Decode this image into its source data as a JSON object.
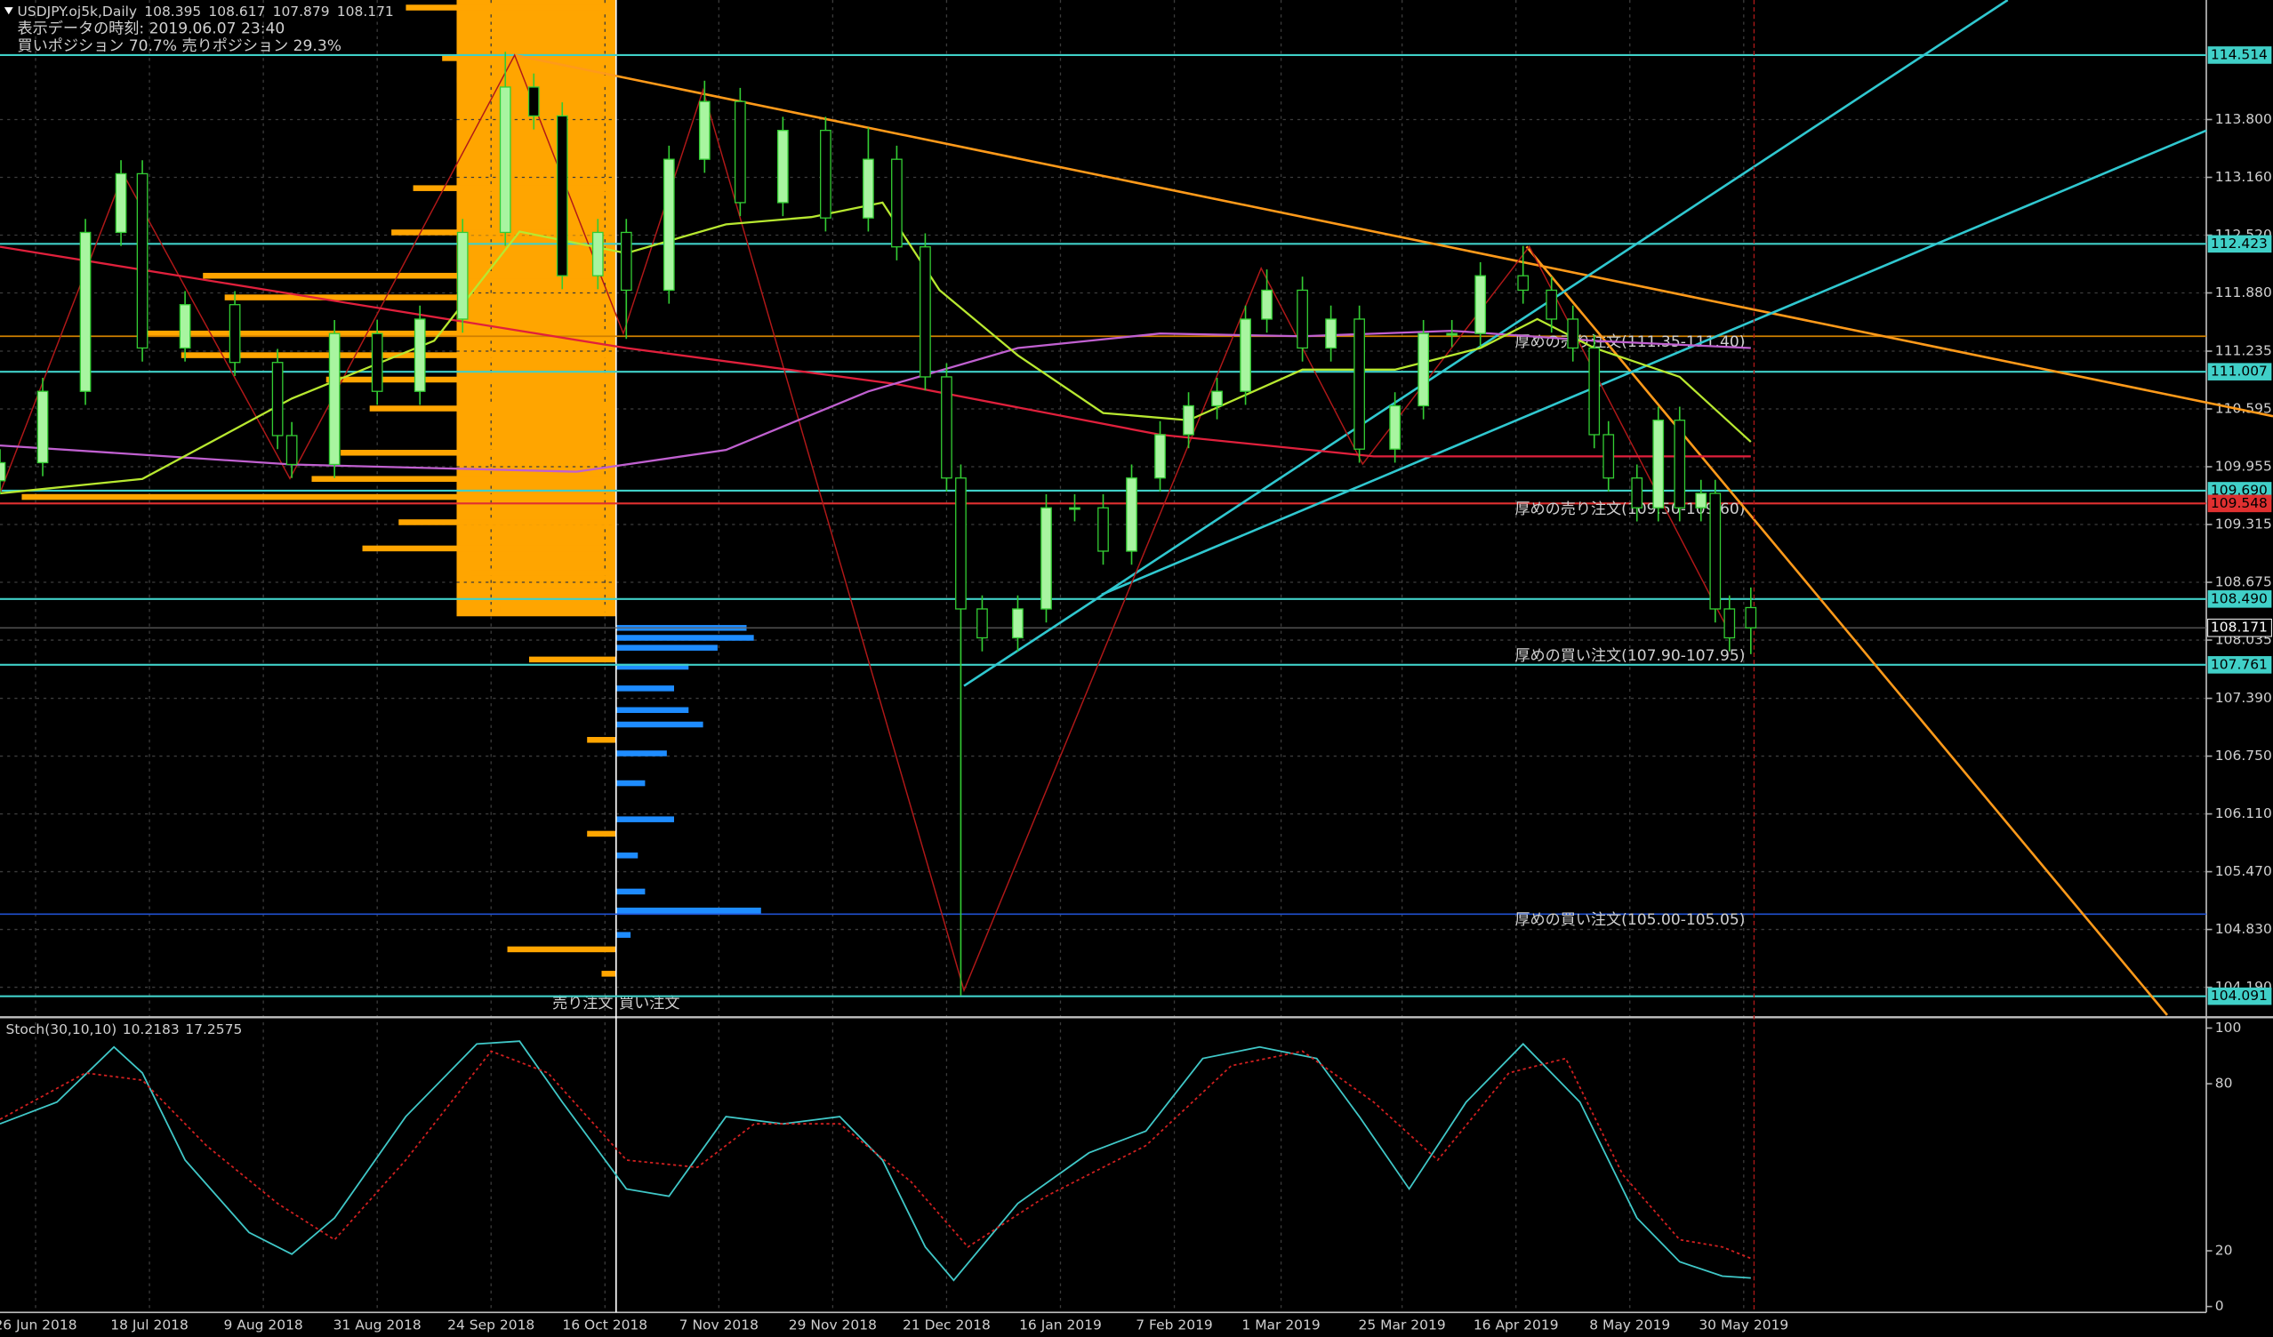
{
  "chart_data": [
    {
      "type": "candlestick",
      "title": "USDJPY.oj5k,Daily",
      "subtitle": "表示データの時刻: 2019.06.07 23:40",
      "position_ratio": "買いポジション 70.7% 売りポジション 29.3%",
      "up_color": "#a8f5a0",
      "down_color": "#000000",
      "wick_color": "#33cc33",
      "grid": true,
      "xlim": [
        0,
        310
      ],
      "ylim": [
        103.882,
        115.124
      ],
      "xticks": [
        {
          "value": 5,
          "label": "26 Jun 2018"
        },
        {
          "value": 21,
          "label": "18 Jul 2018"
        },
        {
          "value": 37,
          "label": "9 Aug 2018"
        },
        {
          "value": 53,
          "label": "31 Aug 2018"
        },
        {
          "value": 69,
          "label": "24 Sep 2018"
        },
        {
          "value": 85,
          "label": "16 Oct 2018"
        },
        {
          "value": 101,
          "label": "7 Nov 2018"
        },
        {
          "value": 117,
          "label": "29 Nov 2018"
        },
        {
          "value": 133,
          "label": "21 Dec 2018"
        },
        {
          "value": 149,
          "label": "16 Jan 2019"
        },
        {
          "value": 165,
          "label": "7 Feb 2019"
        },
        {
          "value": 180,
          "label": "1 Mar 2019"
        },
        {
          "value": 197,
          "label": "25 Mar 2019"
        },
        {
          "value": 213,
          "label": "16 Apr 2019"
        },
        {
          "value": 229,
          "label": "8 May 2019"
        },
        {
          "value": 245,
          "label": "30 May 2019"
        }
      ],
      "yticks": [
        {
          "value": 113.8,
          "label": "113.800"
        },
        {
          "value": 113.16,
          "label": "113.160"
        },
        {
          "value": 112.52,
          "label": "112.520"
        },
        {
          "value": 111.88,
          "label": "111.880"
        },
        111.235,
        110.595,
        109.955,
        109.315,
        108.675,
        108.035,
        {
          "value": 107.39,
          "label": "107.390"
        },
        {
          "value": 106.75,
          "label": "106.750"
        },
        {
          "value": 106.11,
          "label": "106.110"
        },
        {
          "value": 105.47,
          "label": "105.470"
        },
        {
          "value": 104.83,
          "label": "104.830"
        },
        {
          "value": 104.19,
          "label": "104.190"
        }
      ],
      "x": [
        0,
        6,
        12,
        17,
        20,
        26,
        33,
        39,
        41,
        47,
        53,
        59,
        65,
        71,
        75,
        79,
        84,
        88,
        94,
        99,
        104,
        110,
        116,
        122,
        126,
        130,
        133,
        135,
        138,
        143,
        147,
        151,
        155,
        159,
        163,
        167,
        171,
        175,
        178,
        183,
        187,
        191,
        196,
        200,
        204,
        208,
        214,
        218,
        221,
        224,
        226,
        230,
        233,
        236,
        239,
        241,
        243,
        246
      ],
      "open": [
        109.8,
        110,
        110.79,
        112.55,
        113.2,
        111.27,
        111.75,
        111.11,
        110.3,
        109.98,
        111.43,
        110.79,
        111.59,
        112.55,
        114.16,
        113.84,
        112.07,
        112.55,
        111.91,
        113.36,
        114,
        112.88,
        113.68,
        112.71,
        113.36,
        112.39,
        110.95,
        109.83,
        108.38,
        108.06,
        108.38,
        109.5,
        109.5,
        109.02,
        109.83,
        110.31,
        110.63,
        110.79,
        111.59,
        111.91,
        111.27,
        111.59,
        110.15,
        110.63,
        111.43,
        111.43,
        112.07,
        111.91,
        111.59,
        111.27,
        110.31,
        109.83,
        109.5,
        110.47,
        109.5,
        109.66,
        108.38,
        108.395
      ],
      "high": [
        110.15,
        110.94,
        112.7,
        113.35,
        113.35,
        111.9,
        111.9,
        111.26,
        110.45,
        111.58,
        111.58,
        111.74,
        112.7,
        114.55,
        114.31,
        113.99,
        112.7,
        112.7,
        113.51,
        114.23,
        114.15,
        113.83,
        113.83,
        113.71,
        113.51,
        112.54,
        111.1,
        109.98,
        108.53,
        108.53,
        109.65,
        109.65,
        109.65,
        109.98,
        110.46,
        110.78,
        110.94,
        111.74,
        112.14,
        112.06,
        111.74,
        111.74,
        110.78,
        111.58,
        111.58,
        112.22,
        112.4,
        112.06,
        111.74,
        111.42,
        110.46,
        109.98,
        110.62,
        110.62,
        109.81,
        109.81,
        108.53,
        108.617
      ],
      "low": [
        109.65,
        109.85,
        110.64,
        112.4,
        111.12,
        111.12,
        110.96,
        110.15,
        109.83,
        109.83,
        110.64,
        110.64,
        111.44,
        112.4,
        113.69,
        111.92,
        111.92,
        111.37,
        111.76,
        113.21,
        112.73,
        112.73,
        112.56,
        112.56,
        112.24,
        110.8,
        109.68,
        104.1,
        107.91,
        107.91,
        108.23,
        109.35,
        108.87,
        108.87,
        109.68,
        110.16,
        110.48,
        110.64,
        111.44,
        111.12,
        111.12,
        110,
        110,
        110.48,
        111.28,
        111.28,
        111.76,
        111.44,
        111.12,
        110.16,
        109.68,
        109.35,
        109.35,
        109.35,
        109.35,
        108.23,
        107.91,
        107.879
      ],
      "close": [
        110,
        110.79,
        112.55,
        113.2,
        111.27,
        111.75,
        111.11,
        110.3,
        109.98,
        111.43,
        110.79,
        111.59,
        112.55,
        114.16,
        113.84,
        112.07,
        112.55,
        111.91,
        113.36,
        114,
        112.88,
        113.68,
        112.71,
        113.36,
        112.39,
        110.95,
        109.83,
        108.38,
        108.06,
        108.38,
        109.5,
        109.5,
        109.02,
        109.83,
        110.31,
        110.63,
        110.79,
        111.59,
        111.91,
        111.27,
        111.59,
        110.15,
        110.63,
        111.43,
        111.43,
        112.07,
        111.91,
        111.59,
        111.27,
        110.31,
        109.83,
        109.5,
        110.47,
        109.5,
        109.66,
        108.38,
        108.06,
        108.171
      ],
      "moving_averages": [
        {
          "color": "#e0203c",
          "x": [
            0,
            88,
            126,
            163,
            193,
            246
          ],
          "values": [
            112.39,
            111.27,
            110.87,
            110.31,
            110.07,
            110.07
          ]
        },
        {
          "color": "#c060d0",
          "x": [
            0,
            41,
            81,
            102,
            122,
            143,
            163,
            183,
            204,
            224,
            246
          ],
          "values": [
            110.19,
            109.98,
            109.9,
            110.14,
            110.79,
            111.27,
            111.43,
            111.4,
            111.46,
            111.35,
            111.27
          ]
        },
        {
          "color": "#b8e830",
          "x": [
            0,
            20,
            41,
            61,
            73,
            88,
            102,
            114,
            124,
            132,
            143,
            155,
            167,
            183,
            196,
            208,
            216,
            224,
            236,
            246
          ],
          "values": [
            109.66,
            109.82,
            110.71,
            111.35,
            112.56,
            112.32,
            112.64,
            112.72,
            112.88,
            111.91,
            111.19,
            110.55,
            110.47,
            111.03,
            111.03,
            111.27,
            111.59,
            111.27,
            110.95,
            110.23
          ]
        }
      ],
      "levels": [
        {
          "value": 114.514,
          "color": "#40d0c8"
        },
        {
          "value": 112.423,
          "color": "#40d0c8"
        },
        {
          "value": 111.007,
          "color": "#40d0c8"
        },
        {
          "value": 109.69,
          "label": "109.690",
          "color": "#40d0c8"
        },
        {
          "value": 109.548,
          "color": "#e03030",
          "note": "厚めの売り注文(109.50-109.60)"
        },
        {
          "value": 108.49,
          "label": "108.490",
          "color": "#40d0c8"
        },
        {
          "value": 108.171,
          "color": "#000000"
        },
        {
          "value": 107.761,
          "color": "#40d0c8",
          "note": "厚めの買い注文(107.90-107.95)"
        },
        {
          "value": 104.091,
          "color": "#40d0c8"
        }
      ],
      "order_lines": [
        {
          "value": 111.4,
          "color": "#d08000",
          "note": "厚めの売り注文(111.35-111.40)"
        },
        {
          "value": 105.0,
          "color": "#2050d0",
          "note": "厚めの買い注文(105.00-105.05)"
        }
      ],
      "order_book": {
        "sell_label": "売り注文",
        "buy_label": "買い注文",
        "sell": {
          "color": "#ffa500",
          "prices": [
            115.04,
            114.48,
            114.24,
            113.04,
            112.55,
            112.07,
            111.83,
            111.43,
            111.19,
            110.92,
            110.6,
            110.11,
            109.82,
            109.62,
            109.34,
            109.05,
            108.78,
            108.57,
            108.38,
            107.82,
            106.93,
            105.89,
            104.61,
            104.34
          ],
          "values": [
            145,
            120,
            110,
            140,
            155,
            285,
            270,
            330,
            300,
            200,
            170,
            190,
            210,
            410,
            150,
            175,
            100,
            50,
            80,
            60,
            20,
            20,
            75,
            10
          ]
        },
        "buy": {
          "color": "#1e8cff",
          "prices": [
            108.17,
            108.06,
            107.95,
            107.74,
            107.5,
            107.26,
            107.1,
            106.78,
            106.45,
            106.05,
            105.65,
            105.25,
            105.04,
            104.77
          ],
          "values": [
            90,
            95,
            70,
            50,
            40,
            50,
            60,
            35,
            20,
            40,
            15,
            20,
            100,
            10
          ]
        }
      }
    },
    {
      "type": "line",
      "title": "Stoch(30,10,10)",
      "xlim": [
        0,
        310
      ],
      "ylim": [
        -2.1,
        103.1
      ],
      "yticks": [
        100,
        80,
        20,
        0
      ],
      "series": [
        {
          "color": "#40c8c8",
          "x": [
            0,
            8,
            16,
            20,
            26,
            35,
            41,
            47,
            57,
            67,
            73,
            79,
            88,
            94,
            102,
            110,
            118,
            124,
            130,
            134,
            143,
            153,
            161,
            169,
            177,
            185,
            191,
            198,
            206,
            214,
            222,
            230,
            236,
            242,
            246
          ],
          "values": [
            65.6,
            73.4,
            93.2,
            83.9,
            52.6,
            26.6,
            18.8,
            31.8,
            68.2,
            94.3,
            95.3,
            73.4,
            42.2,
            39.6,
            68.2,
            65.6,
            68.2,
            52.6,
            21.4,
            9.4,
            37.0,
            55.2,
            63.0,
            89.1,
            93.2,
            89.1,
            68.2,
            42.2,
            73.4,
            94.3,
            73.4,
            31.8,
            16.1,
            10.9,
            10.2183
          ]
        },
        {
          "color": "#d02020",
          "dashed": true,
          "x": [
            0,
            12,
            20,
            29,
            39,
            47,
            57,
            69,
            77,
            88,
            98,
            106,
            118,
            128,
            136,
            147,
            161,
            173,
            183,
            193,
            202,
            212,
            220,
            228,
            236,
            242,
            246
          ],
          "values": [
            67.2,
            83.9,
            81.3,
            57.8,
            37.0,
            24.0,
            52.6,
            91.7,
            83.9,
            52.6,
            50.0,
            65.6,
            65.6,
            44.8,
            21.4,
            39.6,
            57.8,
            86.5,
            91.7,
            73.4,
            52.6,
            83.9,
            89.1,
            47.4,
            24.0,
            21.4,
            17.2575
          ]
        }
      ]
    }
  ]
}
